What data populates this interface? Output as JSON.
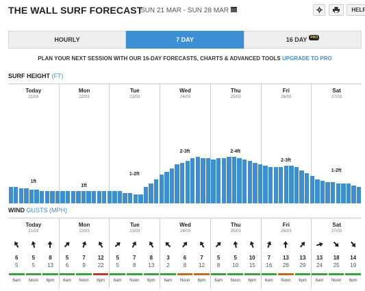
{
  "header": {
    "title": "THE WALL SURF FORECAST",
    "date_range": "SUN 21 MAR - SUN 28 MAR",
    "settings_icon": "gear-icon",
    "print_icon": "printer-icon",
    "help_label": "HELP"
  },
  "tabs": [
    {
      "label": "HOURLY",
      "active": false
    },
    {
      "label": "7 DAY",
      "active": true
    },
    {
      "label": "16 DAY",
      "active": false,
      "badge": "PRO"
    }
  ],
  "upsell": {
    "text": "PLAN YOUR NEXT SESSION WITH OUR 16-DAY FORECASTS, CHARTS & ADVANCED TOOLS",
    "link": "UPGRADE TO PRO"
  },
  "days": [
    {
      "name": "Today",
      "date": "21/03"
    },
    {
      "name": "Mon",
      "date": "22/03"
    },
    {
      "name": "Tue",
      "date": "23/03"
    },
    {
      "name": "Wed",
      "date": "24/03"
    },
    {
      "name": "Thu",
      "date": "25/03"
    },
    {
      "name": "Fri",
      "date": "26/03"
    },
    {
      "name": "Sat",
      "date": "27/03"
    }
  ],
  "surf_height": {
    "title": "SURF HEIGHT",
    "unit": "(FT)",
    "color": "#3d8fd4",
    "labels": [
      "1ft",
      "1ft",
      "1-2ft",
      "2-3ft",
      "2-4ft",
      "2-3ft",
      "1-2ft"
    ],
    "values": [
      1.1,
      1.1,
      1.0,
      1.0,
      0.9,
      0.9,
      0.8,
      0.8,
      0.8,
      0.8,
      0.8,
      0.8,
      0.8,
      0.8,
      0.8,
      0.8,
      0.8,
      0.8,
      0.8,
      0.8,
      0.8,
      0.8,
      0.7,
      0.7,
      0.6,
      0.6,
      1.1,
      1.3,
      1.6,
      1.9,
      2.1,
      2.3,
      2.6,
      2.7,
      2.8,
      3.0,
      3.1,
      3.0,
      3.0,
      2.9,
      3.0,
      3.0,
      3.1,
      3.1,
      3.0,
      2.9,
      2.8,
      2.7,
      2.6,
      2.5,
      2.4,
      2.4,
      2.4,
      2.5,
      2.5,
      2.4,
      2.2,
      2.0,
      1.8,
      1.6,
      1.5,
      1.4,
      1.4,
      1.3,
      1.3,
      1.3,
      1.2,
      1.1
    ],
    "max": 6
  },
  "wind": {
    "title": "WIND",
    "unit_label": "GUSTS (MPH)",
    "times": [
      "6am",
      "Noon",
      "6pm"
    ],
    "arrow_icon": "wind-direction-arrow-icon",
    "entries": [
      {
        "dir": 330,
        "speed": "6",
        "gust": "5"
      },
      {
        "dir": 345,
        "speed": "5",
        "gust": "5"
      },
      {
        "dir": 0,
        "speed": "8",
        "gust": "13"
      },
      {
        "dir": 45,
        "speed": "5",
        "gust": "6"
      },
      {
        "dir": 20,
        "speed": "7",
        "gust": "9"
      },
      {
        "dir": 330,
        "speed": "12",
        "gust": "22"
      },
      {
        "dir": 50,
        "speed": "5",
        "gust": "5"
      },
      {
        "dir": 30,
        "speed": "7",
        "gust": "8"
      },
      {
        "dir": 330,
        "speed": "8",
        "gust": "13"
      },
      {
        "dir": 315,
        "speed": "3",
        "gust": "2"
      },
      {
        "dir": 40,
        "speed": "6",
        "gust": "8"
      },
      {
        "dir": 330,
        "speed": "7",
        "gust": "12"
      },
      {
        "dir": 45,
        "speed": "5",
        "gust": "8"
      },
      {
        "dir": 350,
        "speed": "5",
        "gust": "10"
      },
      {
        "dir": 340,
        "speed": "10",
        "gust": "15"
      },
      {
        "dir": 20,
        "speed": "7",
        "gust": "16"
      },
      {
        "dir": 0,
        "speed": "13",
        "gust": "28"
      },
      {
        "dir": 40,
        "speed": "13",
        "gust": "29"
      },
      {
        "dir": 75,
        "speed": "13",
        "gust": "24"
      },
      {
        "dir": 135,
        "speed": "18",
        "gust": "25"
      },
      {
        "dir": 140,
        "speed": "14",
        "gust": "19"
      }
    ],
    "ratings": [
      "#37a33a",
      "#37a33a",
      "#37a33a",
      "#37a33a",
      "#37a33a",
      "#c0392b",
      "#37a33a",
      "#37a33a",
      "#37a33a",
      "#37a33a",
      "#c56a1d",
      "#c56a1d",
      "#37a33a",
      "#37a33a",
      "#37a33a",
      "#37a33a",
      "#c56a1d",
      "#37a33a",
      "#37a33a",
      "#37a33a",
      "#37a33a"
    ]
  }
}
